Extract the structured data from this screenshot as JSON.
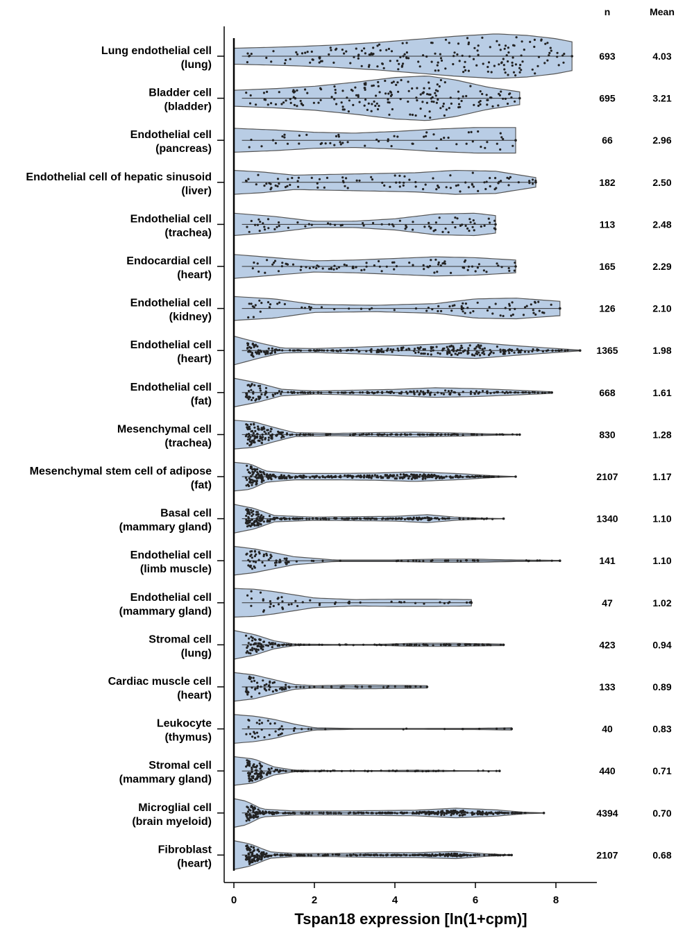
{
  "chart_data": {
    "type": "violin",
    "xlabel": "Tspan18 expression [ln(1+cpm)]",
    "xlim": [
      0,
      9
    ],
    "xticks": [
      0,
      2,
      4,
      6,
      8
    ],
    "orientation": "horizontal",
    "grid": false,
    "colors": {
      "fill": "#b9cde5",
      "outline": "#555555",
      "dot": "#222222"
    },
    "column_headers": {
      "n": "n",
      "mean": "Mean"
    },
    "rows": [
      {
        "label1": "Lung endothelial cell",
        "label2": "(lung)",
        "n": "693",
        "mean": "4.03",
        "max": 8.4,
        "shape": [
          [
            0,
            1.0
          ],
          [
            0.8,
            1.1
          ],
          [
            1.5,
            1.2
          ],
          [
            2.5,
            1.4
          ],
          [
            3.5,
            1.7
          ],
          [
            4.5,
            2.1
          ],
          [
            5.5,
            2.5
          ],
          [
            6.5,
            2.8
          ],
          [
            7.3,
            2.6
          ],
          [
            8.0,
            2.2
          ],
          [
            8.4,
            1.8
          ]
        ]
      },
      {
        "label1": "Bladder cell",
        "label2": "(bladder)",
        "n": "695",
        "mean": "3.21",
        "max": 7.1,
        "shape": [
          [
            0,
            1.0
          ],
          [
            1.0,
            1.2
          ],
          [
            2.0,
            1.5
          ],
          [
            3.0,
            2.0
          ],
          [
            4.0,
            2.6
          ],
          [
            4.8,
            2.8
          ],
          [
            5.5,
            2.3
          ],
          [
            6.3,
            1.4
          ],
          [
            7.1,
            0.8
          ]
        ]
      },
      {
        "label1": "Endothelial cell",
        "label2": "(pancreas)",
        "n": "66",
        "mean": "2.96",
        "max": 7.0,
        "shape": [
          [
            0,
            1.5
          ],
          [
            1.0,
            1.3
          ],
          [
            2.0,
            1.0
          ],
          [
            3.0,
            0.9
          ],
          [
            4.0,
            1.1
          ],
          [
            5.0,
            1.4
          ],
          [
            6.0,
            1.6
          ],
          [
            7.0,
            1.6
          ]
        ]
      },
      {
        "label1": "Endothelial cell of hepatic sinusoid",
        "label2": "(liver)",
        "n": "182",
        "mean": "2.50",
        "max": 7.5,
        "shape": [
          [
            0,
            1.5
          ],
          [
            0.7,
            1.3
          ],
          [
            1.5,
            0.9
          ],
          [
            2.5,
            1.0
          ],
          [
            3.5,
            1.1
          ],
          [
            4.5,
            1.2
          ],
          [
            5.5,
            1.5
          ],
          [
            6.5,
            1.4
          ],
          [
            7.0,
            1.0
          ],
          [
            7.5,
            0.6
          ]
        ]
      },
      {
        "label1": "Endothelial cell",
        "label2": "(trachea)",
        "n": "113",
        "mean": "2.48",
        "max": 6.5,
        "shape": [
          [
            0,
            1.4
          ],
          [
            1.0,
            1.0
          ],
          [
            2.0,
            0.4
          ],
          [
            3.0,
            0.4
          ],
          [
            4.0,
            0.7
          ],
          [
            5.0,
            1.3
          ],
          [
            6.0,
            1.4
          ],
          [
            6.5,
            1.1
          ]
        ]
      },
      {
        "label1": "Endocardial cell",
        "label2": "(heart)",
        "n": "165",
        "mean": "2.29",
        "max": 7.0,
        "shape": [
          [
            0,
            1.5
          ],
          [
            1.0,
            1.1
          ],
          [
            2.0,
            0.7
          ],
          [
            3.0,
            0.8
          ],
          [
            4.0,
            1.0
          ],
          [
            5.0,
            1.2
          ],
          [
            6.0,
            1.1
          ],
          [
            7.0,
            0.8
          ]
        ]
      },
      {
        "label1": "Endothelial cell",
        "label2": "(kidney)",
        "n": "126",
        "mean": "2.10",
        "max": 8.1,
        "shape": [
          [
            0,
            1.5
          ],
          [
            1.0,
            1.2
          ],
          [
            2.0,
            0.5
          ],
          [
            3.5,
            0.4
          ],
          [
            5.0,
            0.6
          ],
          [
            6.0,
            1.2
          ],
          [
            7.0,
            1.3
          ],
          [
            8.1,
            0.9
          ]
        ]
      },
      {
        "label1": "Endothelial cell",
        "label2": "(heart)",
        "n": "1365",
        "mean": "1.98",
        "max": 8.6,
        "shape": [
          [
            0,
            1.8
          ],
          [
            0.6,
            1.0
          ],
          [
            1.2,
            0.3
          ],
          [
            2.0,
            0.25
          ],
          [
            3.0,
            0.4
          ],
          [
            4.0,
            0.6
          ],
          [
            5.0,
            0.8
          ],
          [
            6.0,
            1.0
          ],
          [
            7.0,
            0.6
          ],
          [
            8.0,
            0.25
          ],
          [
            8.6,
            0.05
          ]
        ]
      },
      {
        "label1": "Endothelial cell",
        "label2": "(fat)",
        "n": "668",
        "mean": "1.61",
        "max": 7.9,
        "shape": [
          [
            0,
            1.8
          ],
          [
            0.6,
            1.2
          ],
          [
            1.2,
            0.4
          ],
          [
            2.0,
            0.2
          ],
          [
            3.0,
            0.3
          ],
          [
            4.0,
            0.4
          ],
          [
            5.0,
            0.6
          ],
          [
            6.0,
            0.5
          ],
          [
            7.0,
            0.3
          ],
          [
            7.9,
            0.1
          ]
        ]
      },
      {
        "label1": "Mesenchymal cell",
        "label2": "(trachea)",
        "n": "830",
        "mean": "1.28",
        "max": 7.1,
        "shape": [
          [
            0,
            1.8
          ],
          [
            0.5,
            1.6
          ],
          [
            1.0,
            0.9
          ],
          [
            1.5,
            0.25
          ],
          [
            2.5,
            0.15
          ],
          [
            3.5,
            0.25
          ],
          [
            4.5,
            0.3
          ],
          [
            5.5,
            0.2
          ],
          [
            6.5,
            0.08
          ],
          [
            7.1,
            0.03
          ]
        ]
      },
      {
        "label1": "Mesenchymal stem cell of adipose",
        "label2": "(fat)",
        "n": "2107",
        "mean": "1.17",
        "max": 7.0,
        "shape": [
          [
            0,
            1.8
          ],
          [
            0.4,
            1.6
          ],
          [
            0.8,
            0.7
          ],
          [
            1.5,
            0.4
          ],
          [
            2.5,
            0.4
          ],
          [
            3.5,
            0.45
          ],
          [
            4.5,
            0.6
          ],
          [
            5.5,
            0.4
          ],
          [
            6.5,
            0.1
          ],
          [
            7.0,
            0.02
          ]
        ]
      },
      {
        "label1": "Basal cell",
        "label2": "(mammary gland)",
        "n": "1340",
        "mean": "1.10",
        "max": 6.7,
        "shape": [
          [
            0,
            1.8
          ],
          [
            0.5,
            1.3
          ],
          [
            1.0,
            0.4
          ],
          [
            2.0,
            0.2
          ],
          [
            3.0,
            0.25
          ],
          [
            4.0,
            0.3
          ],
          [
            4.8,
            0.5
          ],
          [
            5.5,
            0.2
          ],
          [
            6.2,
            0.06
          ],
          [
            6.7,
            0.02
          ]
        ]
      },
      {
        "label1": "Endothelial cell",
        "label2": "(limb muscle)",
        "n": "141",
        "mean": "1.10",
        "max": 8.1,
        "shape": [
          [
            0,
            1.8
          ],
          [
            0.5,
            1.5
          ],
          [
            1.0,
            1.0
          ],
          [
            1.5,
            0.5
          ],
          [
            2.5,
            0.1
          ],
          [
            4.0,
            0.1
          ],
          [
            5.0,
            0.2
          ],
          [
            6.0,
            0.2
          ],
          [
            7.0,
            0.1
          ],
          [
            8.1,
            0.05
          ]
        ]
      },
      {
        "label1": "Endothelial cell",
        "label2": "(mammary gland)",
        "n": "47",
        "mean": "1.02",
        "max": 5.9,
        "shape": [
          [
            0,
            1.8
          ],
          [
            0.5,
            1.7
          ],
          [
            1.0,
            1.4
          ],
          [
            1.5,
            1.0
          ],
          [
            2.0,
            0.6
          ],
          [
            3.0,
            0.4
          ],
          [
            4.0,
            0.45
          ],
          [
            5.0,
            0.45
          ],
          [
            5.9,
            0.4
          ]
        ]
      },
      {
        "label1": "Stromal cell",
        "label2": "(lung)",
        "n": "423",
        "mean": "0.94",
        "max": 6.7,
        "shape": [
          [
            0,
            1.8
          ],
          [
            0.5,
            1.3
          ],
          [
            1.0,
            0.5
          ],
          [
            1.5,
            0.1
          ],
          [
            2.5,
            0.05
          ],
          [
            3.5,
            0.05
          ],
          [
            4.5,
            0.2
          ],
          [
            5.5,
            0.2
          ],
          [
            6.0,
            0.15
          ],
          [
            6.7,
            0.1
          ]
        ]
      },
      {
        "label1": "Cardiac muscle cell",
        "label2": "(heart)",
        "n": "133",
        "mean": "0.89",
        "max": 4.8,
        "shape": [
          [
            0,
            1.8
          ],
          [
            0.5,
            1.5
          ],
          [
            1.0,
            0.9
          ],
          [
            1.5,
            0.3
          ],
          [
            2.0,
            0.15
          ],
          [
            3.0,
            0.25
          ],
          [
            4.0,
            0.2
          ],
          [
            4.8,
            0.15
          ]
        ]
      },
      {
        "label1": "Leukocyte",
        "label2": "(thymus)",
        "n": "40",
        "mean": "0.83",
        "max": 6.9,
        "shape": [
          [
            0,
            1.8
          ],
          [
            0.5,
            1.6
          ],
          [
            1.0,
            1.2
          ],
          [
            1.5,
            0.6
          ],
          [
            2.0,
            0.15
          ],
          [
            3.0,
            0.05
          ],
          [
            4.5,
            0.05
          ],
          [
            6.0,
            0.08
          ],
          [
            6.9,
            0.15
          ]
        ]
      },
      {
        "label1": "Stromal cell",
        "label2": "(mammary gland)",
        "n": "440",
        "mean": "0.71",
        "max": 6.6,
        "shape": [
          [
            0,
            1.8
          ],
          [
            0.5,
            1.5
          ],
          [
            1.0,
            0.5
          ],
          [
            1.5,
            0.1
          ],
          [
            2.5,
            0.05
          ],
          [
            3.5,
            0.05
          ],
          [
            4.5,
            0.1
          ],
          [
            5.5,
            0.05
          ],
          [
            6.6,
            0.02
          ]
        ]
      },
      {
        "label1": "Microglial cell",
        "label2": "(brain myeloid)",
        "n": "4394",
        "mean": "0.70",
        "max": 7.7,
        "shape": [
          [
            0,
            1.8
          ],
          [
            0.3,
            1.5
          ],
          [
            0.7,
            0.5
          ],
          [
            1.5,
            0.25
          ],
          [
            2.5,
            0.25
          ],
          [
            3.5,
            0.3
          ],
          [
            4.5,
            0.35
          ],
          [
            5.5,
            0.6
          ],
          [
            6.5,
            0.4
          ],
          [
            7.2,
            0.1
          ],
          [
            7.7,
            0.02
          ]
        ]
      },
      {
        "label1": "Fibroblast",
        "label2": "(heart)",
        "n": "2107",
        "mean": "0.68",
        "max": 6.9,
        "shape": [
          [
            0,
            1.8
          ],
          [
            0.4,
            1.4
          ],
          [
            0.9,
            0.4
          ],
          [
            1.5,
            0.2
          ],
          [
            2.5,
            0.2
          ],
          [
            3.5,
            0.3
          ],
          [
            4.5,
            0.3
          ],
          [
            5.5,
            0.45
          ],
          [
            6.3,
            0.15
          ],
          [
            6.9,
            0.03
          ]
        ]
      }
    ]
  }
}
